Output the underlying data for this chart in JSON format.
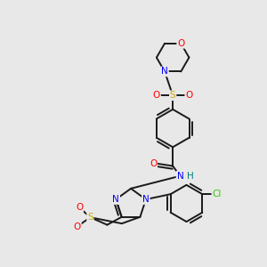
{
  "bg_color": "#e8e8e8",
  "atom_colors": {
    "O": "#ff0000",
    "N": "#0000ff",
    "S": "#ccaa00",
    "Cl": "#33cc00",
    "H": "#008080",
    "C": "#000000"
  },
  "lw": 1.4
}
